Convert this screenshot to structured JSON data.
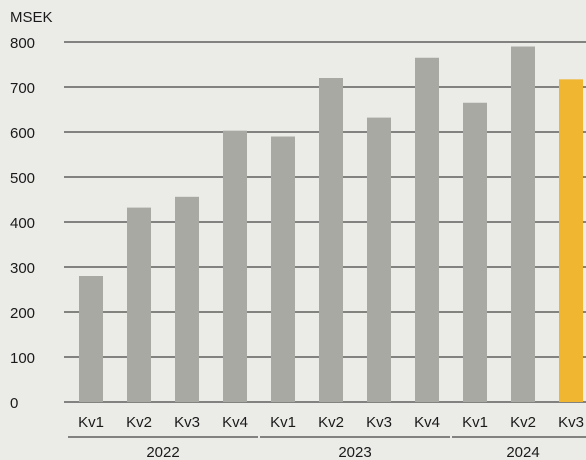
{
  "chart_data": {
    "type": "bar",
    "ylabel": "MSEK",
    "ylim": [
      0,
      800
    ],
    "yticks": [
      0,
      100,
      200,
      300,
      400,
      500,
      600,
      700,
      800
    ],
    "grid": true,
    "categories": [
      "Kv1",
      "Kv2",
      "Kv3",
      "Kv4",
      "Kv1",
      "Kv2",
      "Kv3",
      "Kv4",
      "Kv1",
      "Kv2",
      "Kv3"
    ],
    "groups": [
      {
        "label": "2022",
        "count": 4
      },
      {
        "label": "2023",
        "count": 4
      },
      {
        "label": "2024",
        "count": 3
      }
    ],
    "values": [
      280,
      432,
      456,
      603,
      590,
      720,
      632,
      765,
      665,
      790,
      717
    ],
    "highlight_index": 10,
    "colors": {
      "bar": "#a9a9a3",
      "highlight": "#f0b531",
      "grid": "#1a1a1a",
      "background": "#ebebe8"
    }
  }
}
